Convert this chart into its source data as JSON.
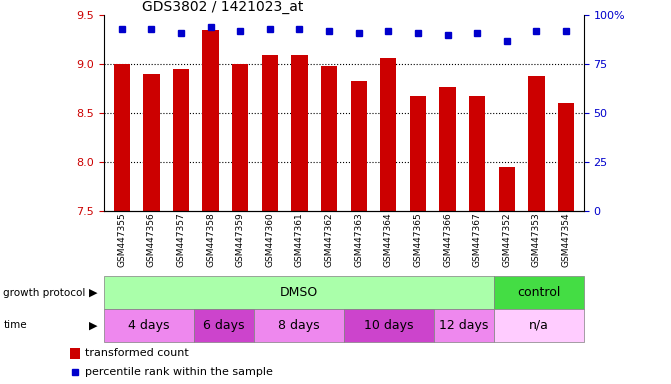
{
  "title": "GDS3802 / 1421023_at",
  "samples": [
    "GSM447355",
    "GSM447356",
    "GSM447357",
    "GSM447358",
    "GSM447359",
    "GSM447360",
    "GSM447361",
    "GSM447362",
    "GSM447363",
    "GSM447364",
    "GSM447365",
    "GSM447366",
    "GSM447367",
    "GSM447352",
    "GSM447353",
    "GSM447354"
  ],
  "bar_values": [
    9.0,
    8.9,
    8.95,
    9.35,
    9.0,
    9.1,
    9.1,
    8.98,
    8.83,
    9.06,
    8.68,
    8.77,
    8.68,
    7.95,
    8.88,
    8.6
  ],
  "percentile_values": [
    93,
    93,
    91,
    94,
    92,
    93,
    93,
    92,
    91,
    92,
    91,
    90,
    91,
    87,
    92,
    92
  ],
  "bar_color": "#cc0000",
  "percentile_color": "#0000cc",
  "ylim_left": [
    7.5,
    9.5
  ],
  "ylim_right": [
    0,
    100
  ],
  "yticks_left": [
    7.5,
    8.0,
    8.5,
    9.0,
    9.5
  ],
  "yticks_right": [
    0,
    25,
    50,
    75,
    100
  ],
  "ytick_labels_right": [
    "0",
    "25",
    "50",
    "75",
    "100%"
  ],
  "grid_values": [
    8.0,
    8.5,
    9.0
  ],
  "growth_protocol_label": "growth protocol",
  "time_label": "time",
  "protocol_groups": [
    {
      "label": "DMSO",
      "start": 0,
      "end": 13,
      "color": "#aaffaa"
    },
    {
      "label": "control",
      "start": 13,
      "end": 16,
      "color": "#44dd44"
    }
  ],
  "time_groups": [
    {
      "label": "4 days",
      "start": 0,
      "end": 3,
      "color": "#ee88ee"
    },
    {
      "label": "6 days",
      "start": 3,
      "end": 5,
      "color": "#cc44cc"
    },
    {
      "label": "8 days",
      "start": 5,
      "end": 8,
      "color": "#ee88ee"
    },
    {
      "label": "10 days",
      "start": 8,
      "end": 11,
      "color": "#cc44cc"
    },
    {
      "label": "12 days",
      "start": 11,
      "end": 13,
      "color": "#ee88ee"
    },
    {
      "label": "n/a",
      "start": 13,
      "end": 16,
      "color": "#ffccff"
    }
  ],
  "legend_bar_label": "transformed count",
  "legend_percentile_label": "percentile rank within the sample",
  "background_color": "#ffffff",
  "tick_label_color_left": "#cc0000",
  "tick_label_color_right": "#0000cc"
}
